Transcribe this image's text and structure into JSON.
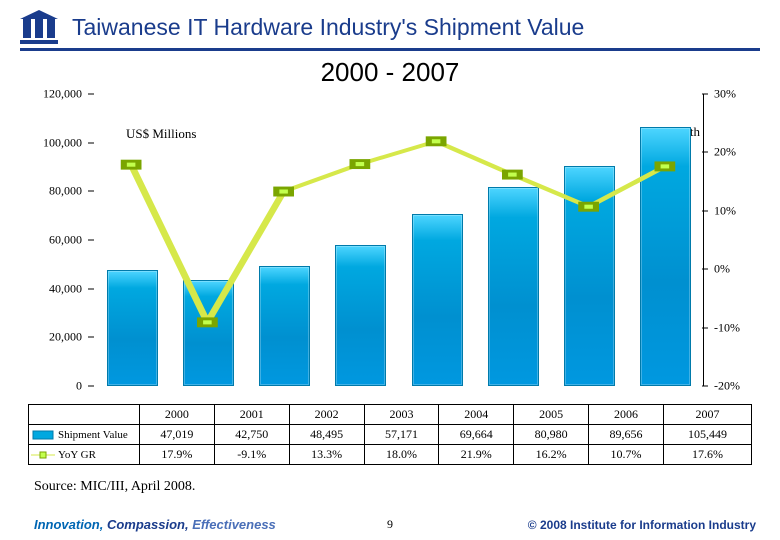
{
  "title": "Taiwanese IT Hardware Industry's Shipment Value",
  "subtitle": "2000 - 2007",
  "chart": {
    "type": "combo-bar-line",
    "left_axis": {
      "label": "US$ Millions",
      "min": 0,
      "max": 120000,
      "step": 20000,
      "ticks": [
        "0",
        "20,000",
        "40,000",
        "60,000",
        "80,000",
        "100,000",
        "120,000"
      ]
    },
    "right_axis": {
      "label": "Growth",
      "min": -20,
      "max": 30,
      "step": 10,
      "ticks": [
        "-20%",
        "-10%",
        "0%",
        "10%",
        "20%",
        "30%"
      ]
    },
    "categories": [
      "2000",
      "2001",
      "2002",
      "2003",
      "2004",
      "2005",
      "2006",
      "2007"
    ],
    "bars": {
      "label": "Shipment Value",
      "values": [
        47019,
        42750,
        48495,
        57171,
        69664,
        80980,
        89656,
        105449
      ],
      "color_top": "#4dd5ff",
      "color_mid": "#00a8e0",
      "border": "#007aaa"
    },
    "line": {
      "label": "YoY GR",
      "values": [
        17.9,
        -9.1,
        13.3,
        18.0,
        21.9,
        16.2,
        10.7,
        17.6
      ],
      "stroke": "#d6e84a",
      "marker_fill": "#c2ff4d",
      "marker_stroke": "#7aa500",
      "marker_size": 8
    }
  },
  "table": {
    "rows": [
      {
        "label": "Shipment Value",
        "values": [
          "47,019",
          "42,750",
          "48,495",
          "57,171",
          "69,664",
          "80,980",
          "89,656",
          "105,449"
        ]
      },
      {
        "label": "YoY GR",
        "values": [
          "17.9%",
          "-9.1%",
          "13.3%",
          "18.0%",
          "21.9%",
          "16.2%",
          "10.7%",
          "17.6%"
        ]
      }
    ]
  },
  "source": "Source: MIC/III, April 2008.",
  "footer_left": {
    "w1": "Innovation,",
    "w2": " Compassion,",
    "w3": " Effectiveness"
  },
  "footer_right": "© 2008 Institute for Information Industry",
  "page_number": "9"
}
